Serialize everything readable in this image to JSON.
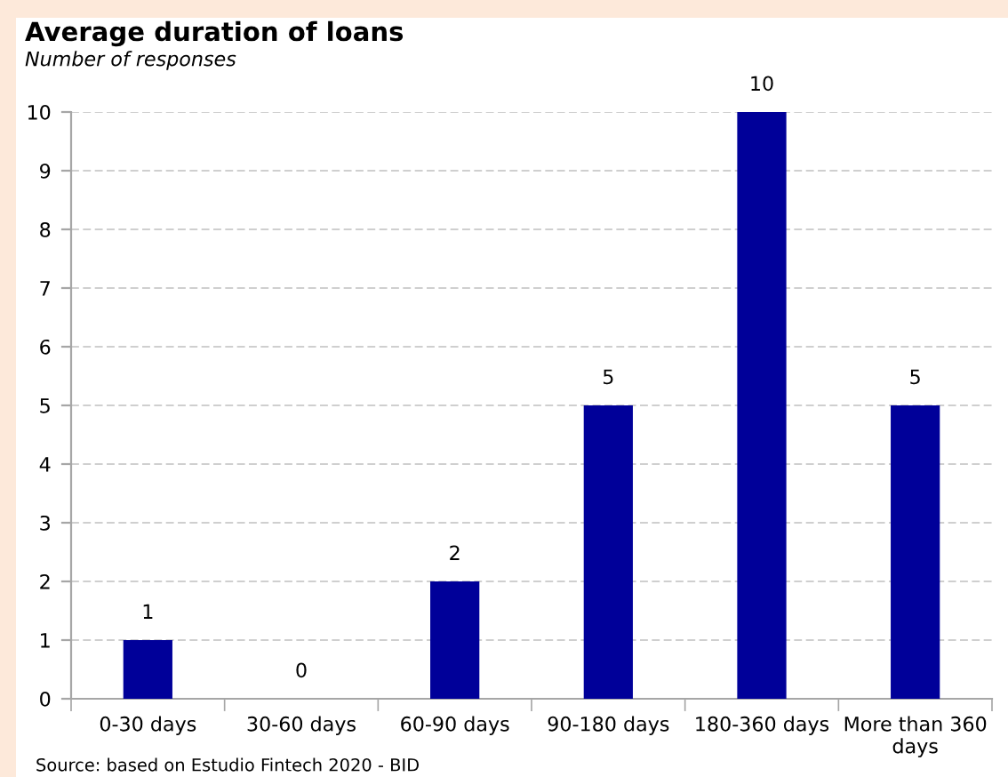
{
  "chart_data": {
    "type": "bar",
    "title": "Average duration of loans",
    "subtitle": "Number of responses",
    "categories": [
      "0-30 days",
      "30-60 days",
      "60-90 days",
      "90-180 days",
      "180-360 days",
      "More than 360 days"
    ],
    "values": [
      1,
      0,
      2,
      5,
      10,
      5
    ],
    "color": "#000099",
    "ylim": [
      0,
      10
    ],
    "yticks": [
      0,
      1,
      2,
      3,
      4,
      5,
      6,
      7,
      8,
      9,
      10
    ],
    "grid": "y",
    "data_labels": true,
    "annotations": [
      "Source: based on Estudio Fintech 2020 - BID"
    ]
  }
}
